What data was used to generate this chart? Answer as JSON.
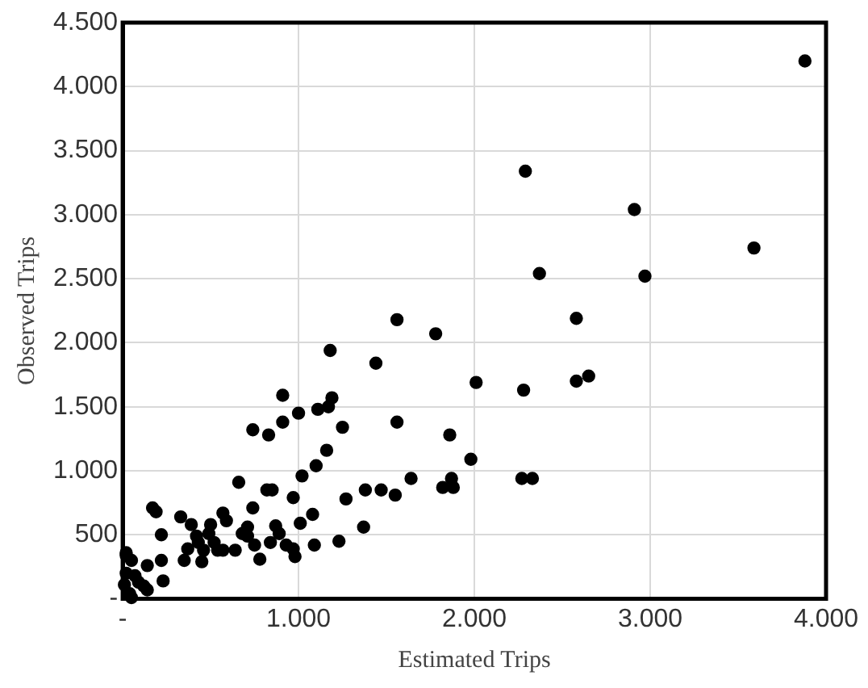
{
  "chart_data": {
    "type": "scatter",
    "xlabel": "Estimated Trips",
    "ylabel": "Observed Trips",
    "marker": "circle",
    "grid": true,
    "xlim": [
      0,
      4000
    ],
    "ylim": [
      0,
      4500
    ],
    "xticks": [
      {
        "value": 0,
        "label": "-"
      },
      {
        "value": 1000,
        "label": "1.000"
      },
      {
        "value": 2000,
        "label": "2.000"
      },
      {
        "value": 3000,
        "label": "3.000"
      },
      {
        "value": 4000,
        "label": "4.000"
      }
    ],
    "yticks": [
      {
        "value": 0,
        "label": "-"
      },
      500,
      {
        "value": 1000,
        "label": "1.000"
      },
      {
        "value": 1500,
        "label": "1.500"
      },
      {
        "value": 2000,
        "label": "2.000"
      },
      {
        "value": 2500,
        "label": "2.500"
      },
      {
        "value": 3000,
        "label": "3.000"
      },
      {
        "value": 3500,
        "label": "3.500"
      },
      {
        "value": 4000,
        "label": "4.000"
      },
      {
        "value": 4500,
        "label": "4.500"
      }
    ],
    "series": [
      {
        "color": "#000000",
        "x": [
          3880,
          2290,
          2910,
          3590,
          2370,
          2970,
          2580,
          2280,
          2580,
          2650,
          2270,
          2330,
          1560,
          1780,
          1180,
          1440,
          2010,
          910,
          1000,
          1110,
          1170,
          1190,
          740,
          830,
          910,
          1250,
          1560,
          1860,
          1980,
          1160,
          1100,
          1020,
          1640,
          1870,
          1820,
          1880,
          1380,
          1470,
          1550,
          1270,
          660,
          820,
          850,
          970,
          740,
          1080,
          1010,
          1370,
          570,
          590,
          710,
          870,
          680,
          710,
          890,
          750,
          840,
          930,
          970,
          980,
          1090,
          1230,
          780,
          640,
          570,
          170,
          190,
          330,
          390,
          220,
          500,
          490,
          520,
          420,
          370,
          430,
          460,
          350,
          450,
          540,
          220,
          140,
          230,
          120,
          140,
          20,
          20,
          50,
          20,
          70,
          10,
          40,
          90,
          50
        ],
        "values": [
          4200,
          3340,
          3040,
          2740,
          2540,
          2520,
          2190,
          1630,
          1700,
          1740,
          940,
          940,
          2180,
          2070,
          1940,
          1840,
          1690,
          1590,
          1450,
          1480,
          1500,
          1570,
          1320,
          1280,
          1380,
          1340,
          1380,
          1280,
          1090,
          1160,
          1040,
          960,
          940,
          940,
          870,
          870,
          850,
          850,
          810,
          780,
          910,
          850,
          850,
          790,
          710,
          660,
          590,
          560,
          670,
          610,
          560,
          570,
          510,
          490,
          510,
          420,
          440,
          420,
          390,
          330,
          420,
          450,
          310,
          380,
          380,
          710,
          680,
          640,
          580,
          500,
          580,
          510,
          440,
          490,
          390,
          440,
          380,
          300,
          290,
          380,
          300,
          260,
          140,
          100,
          70,
          360,
          340,
          300,
          200,
          180,
          110,
          40,
          130,
          10
        ]
      }
    ]
  }
}
